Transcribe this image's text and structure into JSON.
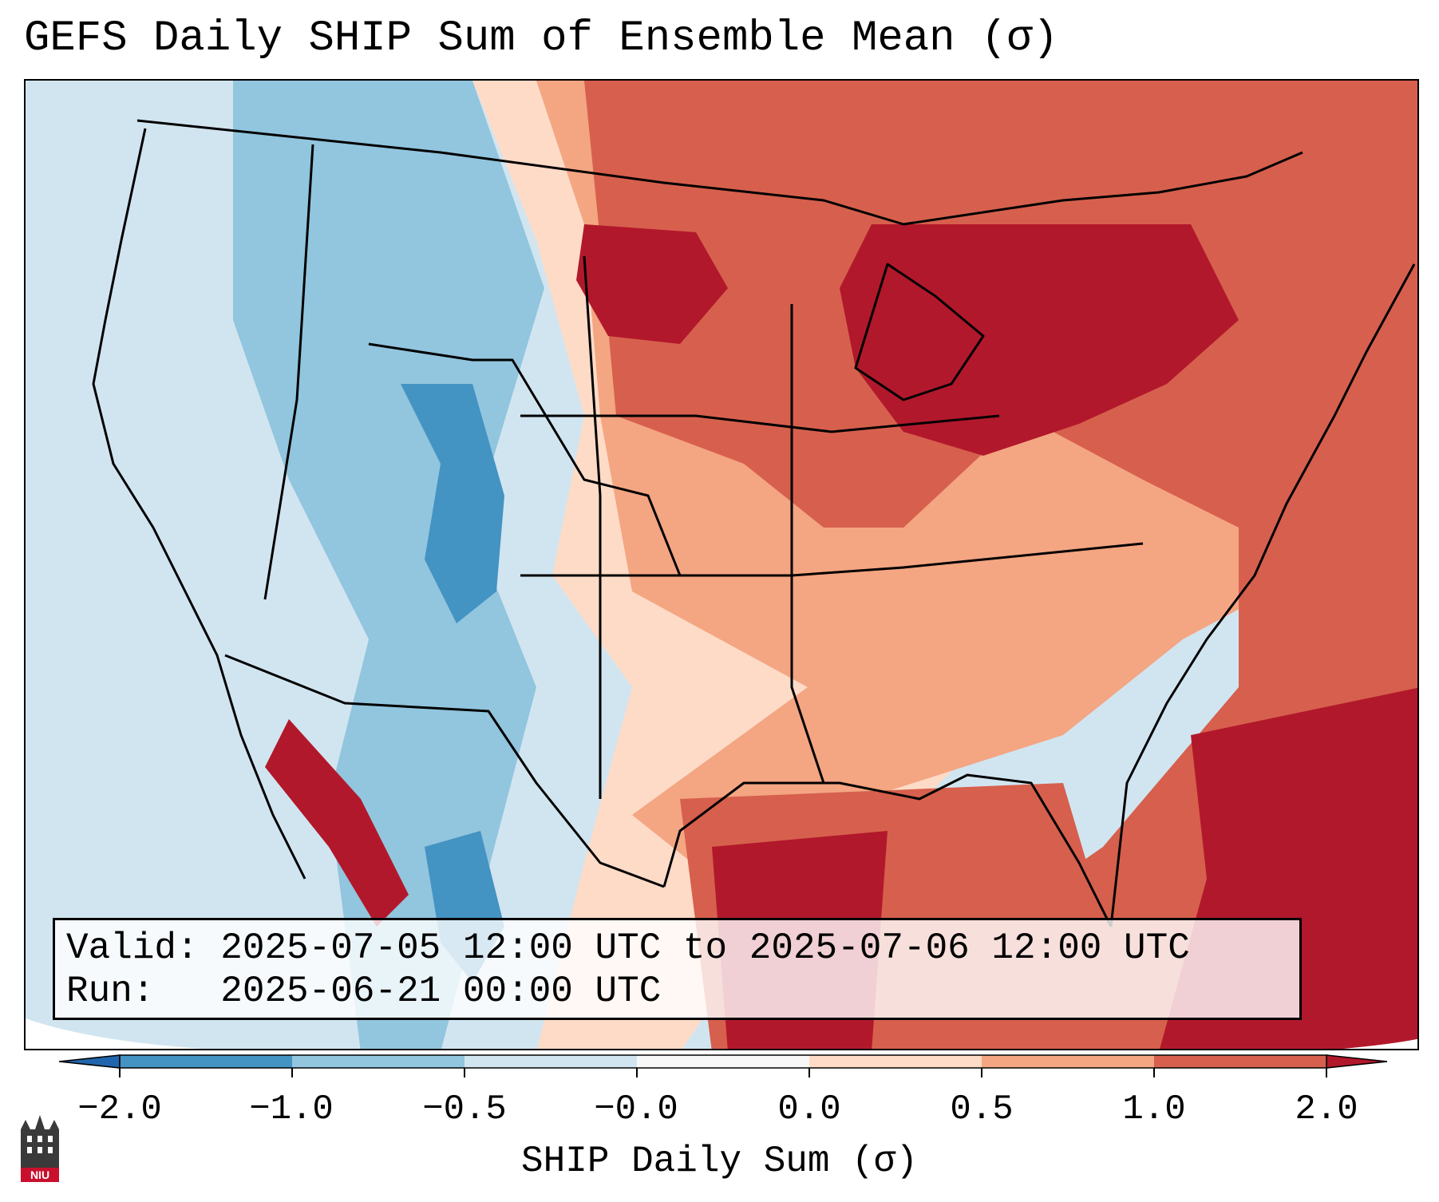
{
  "title": "GEFS Daily SHIP Sum of Ensemble Mean (σ)",
  "info": {
    "valid_line": "Valid: 2025-07-05 12:00 UTC to 2025-07-06 12:00 UTC",
    "run_line": "Run:   2025-06-21 00:00 UTC"
  },
  "colorbar": {
    "label": "SHIP Daily Sum (σ)",
    "ticks": [
      "−2.0",
      "−1.0",
      "−0.5",
      "−0.0",
      "0.0",
      "0.5",
      "1.0",
      "2.0"
    ],
    "bin_colors": [
      "#4393c3",
      "#92c5de",
      "#d1e5f0",
      "#f7f7f7",
      "#fddbc7",
      "#f4a582",
      "#d6604d",
      "#b2182b"
    ],
    "under_color": "#2166ac",
    "over_color": "#b2182b"
  },
  "colors": {
    "ocean_neutral": "#d1e5f0",
    "border": "#000000"
  },
  "logo": {
    "text": "NIU",
    "icon": "niu-tower-logo-icon"
  }
}
